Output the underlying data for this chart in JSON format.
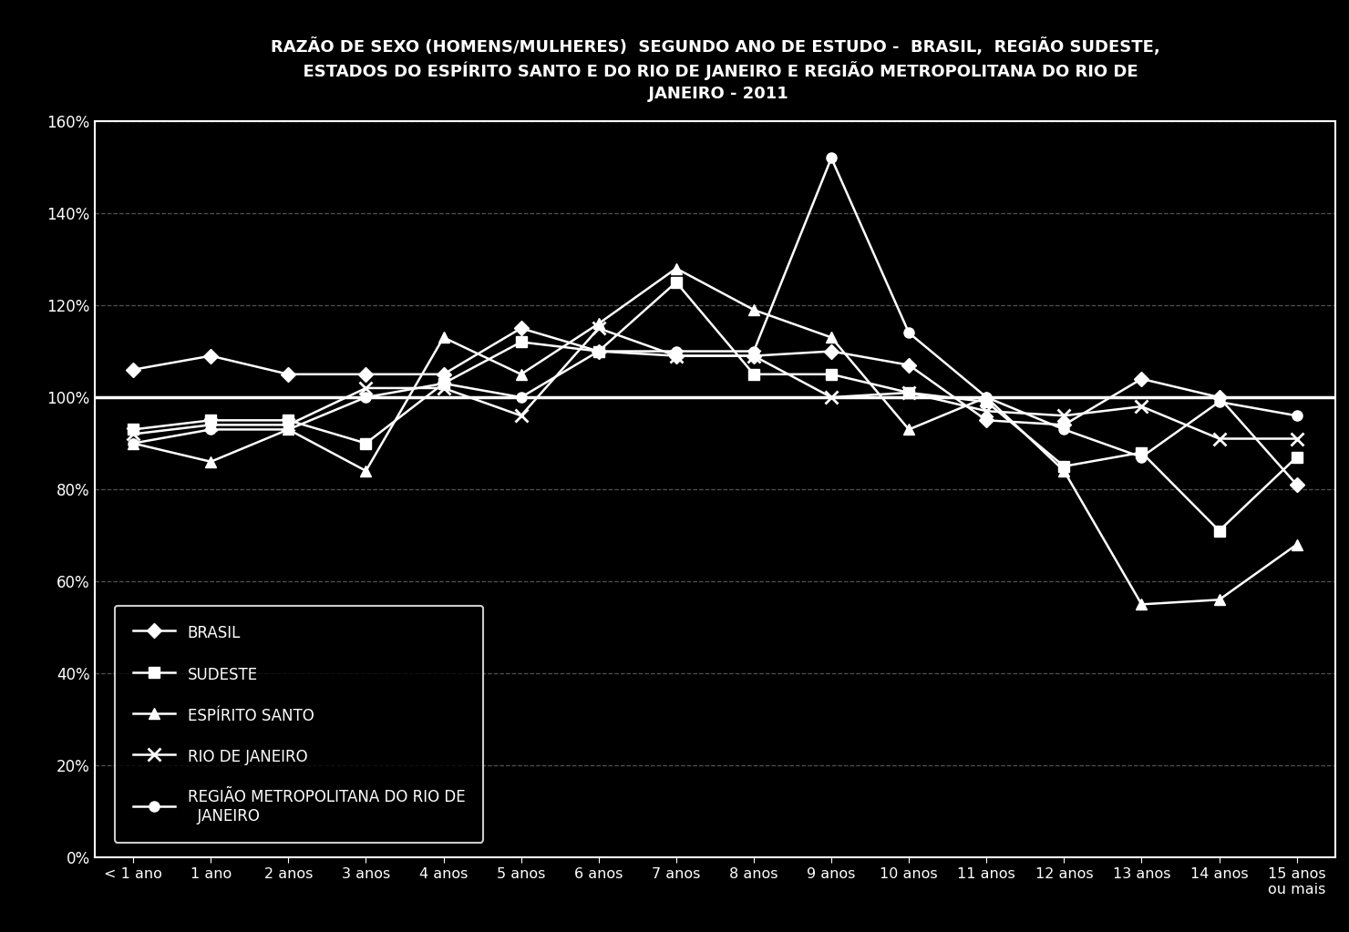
{
  "title": "RAZÃO DE SEXO (HOMENS/MULHERES)  SEGUNDO ANO DE ESTUDO -  BRASIL,  REGIÃO SUDESTE,\n  ESTADOS DO ESPÍRITO SANTO E DO RIO DE JANEIRO E REGIÃO METROPOLITANA DO RIO DE\n JANEIRO - 2011",
  "x_labels": [
    "< 1 ano",
    "1 ano",
    "2 anos",
    "3 anos",
    "4 anos",
    "5 anos",
    "6 anos",
    "7 anos",
    "8 anos",
    "9 anos",
    "10 anos",
    "11 anos",
    "12 anos",
    "13 anos",
    "14 anos",
    "15 anos\nou mais"
  ],
  "series": {
    "BRASIL": [
      1.06,
      1.09,
      1.05,
      1.05,
      1.05,
      1.15,
      1.1,
      1.09,
      1.09,
      1.1,
      1.07,
      0.95,
      0.94,
      1.04,
      1.0,
      0.81
    ],
    "SUDESTE": [
      0.93,
      0.95,
      0.95,
      0.9,
      1.03,
      1.12,
      1.1,
      1.25,
      1.05,
      1.05,
      1.01,
      0.99,
      0.85,
      0.88,
      0.71,
      0.87
    ],
    "ESPIRITO SANTO": [
      0.9,
      0.86,
      0.93,
      0.84,
      1.13,
      1.05,
      1.16,
      1.28,
      1.19,
      1.13,
      0.93,
      1.0,
      0.84,
      0.55,
      0.56,
      0.68
    ],
    "RIO DE JANEIRO": [
      0.92,
      0.94,
      0.94,
      1.02,
      1.02,
      0.96,
      1.15,
      1.09,
      1.09,
      1.0,
      1.01,
      0.97,
      0.96,
      0.98,
      0.91,
      0.91
    ],
    "REGIAO METRO RJ": [
      0.9,
      0.93,
      0.93,
      1.0,
      1.03,
      1.0,
      1.1,
      1.1,
      1.1,
      1.52,
      1.14,
      1.0,
      0.93,
      0.87,
      0.99,
      0.96
    ]
  },
  "legend_labels": {
    "BRASIL": "BRASIL",
    "SUDESTE": "SUDESTE",
    "ESPIRITO SANTO": "ESPÍRITO SANTO",
    "RIO DE JANEIRO": "RIO DE JANEIRO",
    "REGIAO METRO RJ": "REGIÃO METROPOLITANA DO RIO DE\n  JANEIRO"
  },
  "markers": {
    "BRASIL": "D",
    "SUDESTE": "s",
    "ESPIRITO SANTO": "^",
    "RIO DE JANEIRO": "x",
    "REGIAO METRO RJ": "o"
  },
  "ylim": [
    0.0,
    1.6
  ],
  "ytick_values": [
    0.0,
    0.2,
    0.4,
    0.6,
    0.8,
    1.0,
    1.2,
    1.4,
    1.6
  ],
  "ytick_labels": [
    "0%",
    "20%",
    "40%",
    "60%",
    "80%",
    "100%",
    "120%",
    "140%",
    "160%"
  ],
  "background_color": "#000000",
  "text_color": "#ffffff",
  "line_color": "#ffffff",
  "grid_color": "#666666"
}
